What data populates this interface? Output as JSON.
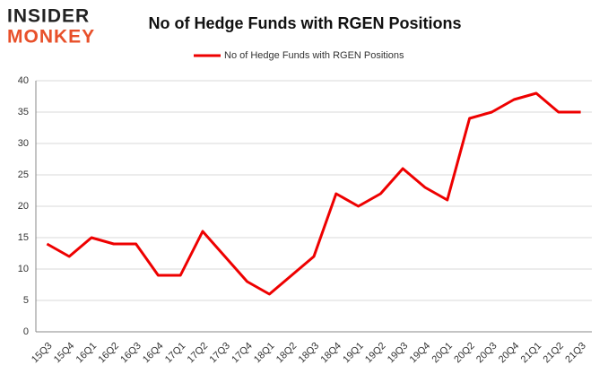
{
  "logo": {
    "line1": "INSIDER",
    "line2": "MONKEY"
  },
  "chart_data": {
    "type": "line",
    "title": "No of Hedge Funds with RGEN Positions",
    "categories": [
      "15Q3",
      "15Q4",
      "16Q1",
      "16Q2",
      "16Q3",
      "16Q4",
      "17Q1",
      "17Q2",
      "17Q3",
      "17Q4",
      "18Q1",
      "18Q2",
      "18Q3",
      "18Q4",
      "19Q1",
      "19Q2",
      "19Q3",
      "19Q4",
      "20Q1",
      "20Q2",
      "20Q3",
      "20Q4",
      "21Q1",
      "21Q2",
      "21Q3"
    ],
    "series": [
      {
        "name": "No of Hedge Funds with RGEN Positions",
        "color": "#ee0000",
        "values": [
          14,
          12,
          15,
          14,
          14,
          9,
          9,
          16,
          12,
          8,
          6,
          9,
          12,
          22,
          20,
          22,
          26,
          23,
          21,
          34,
          35,
          37,
          38,
          35,
          35
        ]
      }
    ],
    "ylim": [
      0,
      40
    ],
    "yticks": [
      0,
      5,
      10,
      15,
      20,
      25,
      30,
      35,
      40
    ],
    "grid": true,
    "legend": "top"
  }
}
